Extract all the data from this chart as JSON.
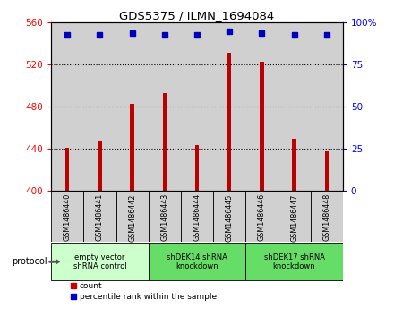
{
  "title": "GDS5375 / ILMN_1694084",
  "samples": [
    "GSM1486440",
    "GSM1486441",
    "GSM1486442",
    "GSM1486443",
    "GSM1486444",
    "GSM1486445",
    "GSM1486446",
    "GSM1486447",
    "GSM1486448"
  ],
  "counts": [
    441,
    447,
    483,
    493,
    444,
    531,
    523,
    450,
    438
  ],
  "percentiles": [
    93,
    93,
    94,
    93,
    93,
    95,
    94,
    93,
    93
  ],
  "ylim_left": [
    400,
    560
  ],
  "ylim_right": [
    0,
    100
  ],
  "yticks_left": [
    400,
    440,
    480,
    520,
    560
  ],
  "yticks_right": [
    0,
    25,
    50,
    75,
    100
  ],
  "groups": [
    {
      "label": "empty vector\nshRNA control",
      "start": 0,
      "end": 3,
      "color": "#ccffcc"
    },
    {
      "label": "shDEK14 shRNA\nknockdown",
      "start": 3,
      "end": 6,
      "color": "#66dd66"
    },
    {
      "label": "shDEK17 shRNA\nknockdown",
      "start": 6,
      "end": 9,
      "color": "#66dd66"
    }
  ],
  "bar_color": "#bb0000",
  "dot_color": "#0000bb",
  "legend_count_color": "#cc0000",
  "legend_dot_color": "#0000cc",
  "col_bg": "#d0d0d0"
}
